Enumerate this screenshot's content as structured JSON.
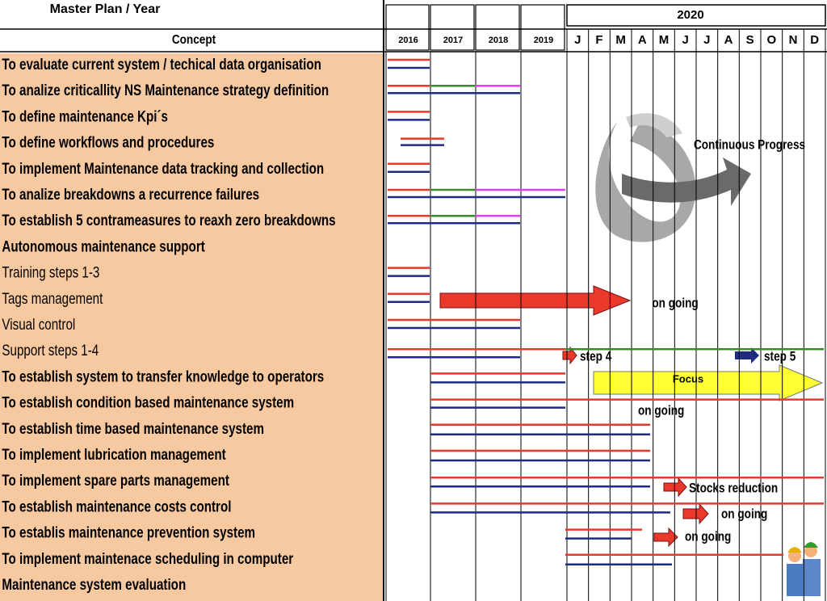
{
  "header": {
    "title": "Master Plan / Year",
    "concept": "Concept",
    "year_group": "2020"
  },
  "years": [
    "2016",
    "2017",
    "2018",
    "2019"
  ],
  "months": [
    "J",
    "F",
    "M",
    "A",
    "M",
    "J",
    "J",
    "A",
    "S",
    "O",
    "N",
    "D"
  ],
  "rows": [
    {
      "label": "To evaluate current system / techical data organisation"
    },
    {
      "label": "To analize criticallity NS Maintenance strategy definition"
    },
    {
      "label": "To define maintenance Kpi´s"
    },
    {
      "label": "To define workflows and procedures"
    },
    {
      "label": "To implement Maintenance data tracking and collection"
    },
    {
      "label": "To analize breakdowns a recurrence failures"
    },
    {
      "label": "To establish 5 contrameasures to reaxh zero breakdowns"
    },
    {
      "label": "Autonomous maintenance support"
    },
    {
      "label": "Training steps 1-3"
    },
    {
      "label": "Tags management"
    },
    {
      "label": "Visual control"
    },
    {
      "label": "Support steps 1-4"
    },
    {
      "label": "To establish system to transfer knowledge to operators"
    },
    {
      "label": "To establish condition based maintenance system"
    },
    {
      "label": "To establish time  based maintenance system"
    },
    {
      "label": "To implement lubrication management"
    },
    {
      "label": "To implement spare parts management"
    },
    {
      "label": "To establish maintenance costs control"
    },
    {
      "label": "To establis maintenance prevention system"
    },
    {
      "label": "To implement maintenace scheduling in computer"
    },
    {
      "label": "Maintenance system evaluation"
    }
  ],
  "annotations": {
    "continuous": "Continuous Progress",
    "tags_status": "on going",
    "step4": "step 4",
    "step5": "step 5",
    "focus": "Focus",
    "condition_status": "on going",
    "stocks": "Stocks reduction",
    "costs_status": "on going",
    "prevention_status": "on going"
  }
}
